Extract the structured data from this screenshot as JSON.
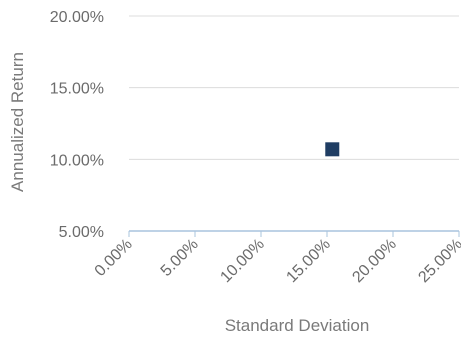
{
  "chart_data": {
    "type": "scatter",
    "title": "",
    "xlabel": "Standard Deviation",
    "ylabel": "Annualized Return",
    "x_ticks": [
      "0.00%",
      "5.00%",
      "10.00%",
      "15.00%",
      "20.00%",
      "25.00%"
    ],
    "y_ticks": [
      "5.00%",
      "10.00%",
      "15.00%",
      "20.00%"
    ],
    "xlim": [
      0,
      25
    ],
    "ylim": [
      5,
      20
    ],
    "grid": true,
    "legend": "none",
    "series": [
      {
        "color": "#1f3d63",
        "marker": "square",
        "points": [
          {
            "x": 15.4,
            "y": 10.7
          }
        ]
      }
    ]
  }
}
